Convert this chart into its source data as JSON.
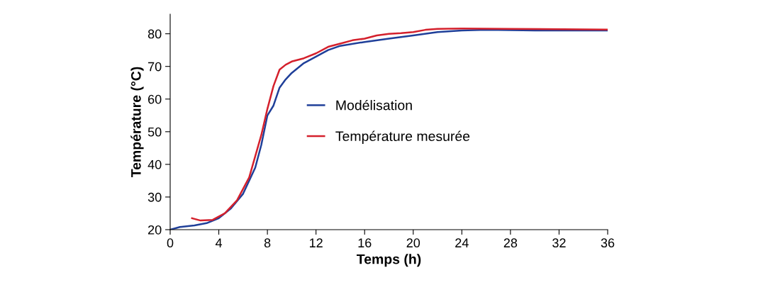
{
  "chart_data": {
    "type": "line",
    "xlabel": "Temps (h)",
    "ylabel": "Température (°C)",
    "xlim": [
      0,
      36
    ],
    "xticks": [
      0,
      4,
      8,
      12,
      16,
      20,
      24,
      28,
      32,
      36
    ],
    "ylim": [
      20,
      86
    ],
    "yticks": [
      20,
      30,
      40,
      50,
      60,
      70,
      80
    ],
    "legend": "center",
    "grid": false,
    "marker": "none",
    "line_style": "solid",
    "series": [
      {
        "name": "Modélisation",
        "color": "#1f3f99",
        "x": [
          0,
          0.8,
          2,
          3,
          4,
          5,
          6,
          7,
          7.5,
          8,
          8.5,
          9,
          9.5,
          10,
          11,
          12,
          13,
          14,
          16,
          18,
          20,
          22,
          24,
          26,
          30,
          36
        ],
        "values": [
          20,
          20.8,
          21.3,
          22,
          23.5,
          26.5,
          31,
          39,
          46,
          55,
          58,
          63.5,
          66,
          68,
          71,
          73,
          75,
          76.3,
          77.5,
          78.5,
          79.5,
          80.5,
          81,
          81.2,
          81,
          81
        ]
      },
      {
        "name": "Température mesurée",
        "color": "#d4202c",
        "x": [
          1.8,
          2.5,
          3.5,
          4.5,
          5.5,
          6.5,
          7.5,
          8,
          8.5,
          9,
          9.5,
          10,
          11,
          12,
          13,
          14,
          15,
          16,
          17,
          18,
          19,
          20,
          21,
          22,
          24,
          28,
          36
        ],
        "values": [
          23.5,
          22.8,
          23,
          25,
          29,
          36,
          49,
          57,
          64,
          69,
          70.5,
          71.5,
          72.5,
          74,
          76,
          77,
          78,
          78.5,
          79.5,
          80,
          80.2,
          80.5,
          81.2,
          81.5,
          81.6,
          81.5,
          81.3
        ]
      }
    ]
  }
}
